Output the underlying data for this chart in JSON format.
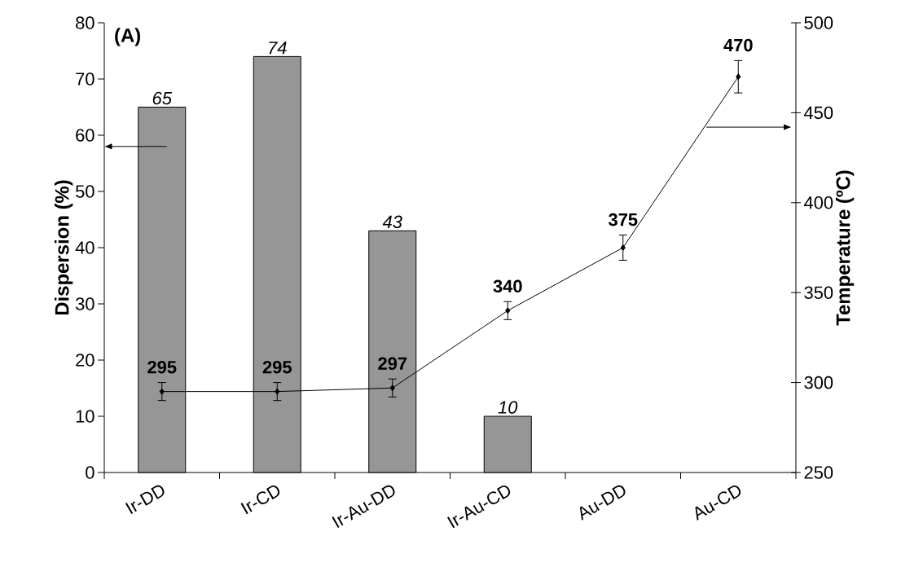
{
  "chart_data": {
    "type": "bar",
    "categories": [
      "Ir-DD",
      "Ir-CD",
      "Ir-Au-DD",
      "Ir-Au-CD",
      "Au-DD",
      "Au-CD"
    ],
    "ylabel": "Dispersion (%)",
    "y2label": "Temperature (ºC)",
    "ylim": [
      0,
      80
    ],
    "yticks": [
      0,
      10,
      20,
      30,
      40,
      50,
      60,
      70,
      80
    ],
    "y2lim": [
      250,
      500
    ],
    "y2ticks": [
      250,
      300,
      350,
      400,
      450,
      500
    ],
    "annotations": [
      "(A)"
    ],
    "data_labels": true,
    "series": [
      {
        "type": "bar",
        "color": "#969696",
        "values": [
          65,
          74,
          43,
          10,
          null,
          null
        ]
      },
      {
        "type": "line",
        "axis": "y2",
        "color": "#000000",
        "marker": "diamond",
        "line_style": "solid",
        "values": [
          295,
          295,
          297,
          340,
          375,
          470
        ],
        "errors": [
          5,
          5,
          5,
          5,
          7,
          9
        ]
      }
    ]
  }
}
